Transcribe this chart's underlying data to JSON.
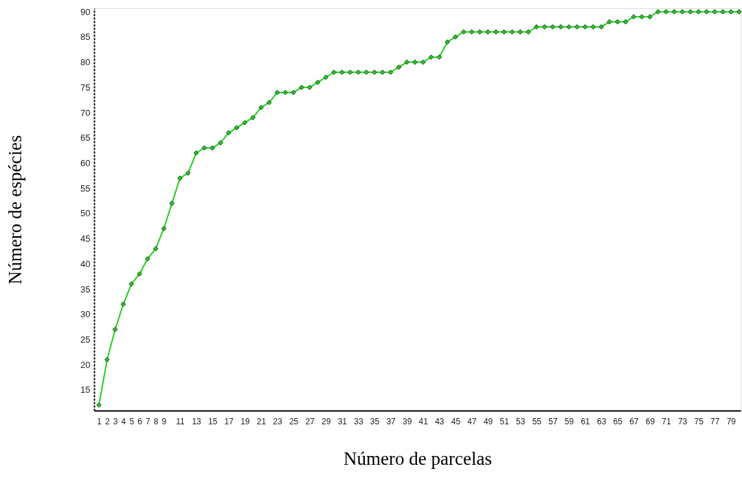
{
  "chart_data": {
    "type": "line",
    "xlabel": "Número de parcelas",
    "ylabel": "Número de espécies",
    "x": [
      1,
      2,
      3,
      4,
      5,
      6,
      7,
      8,
      9,
      10,
      11,
      12,
      13,
      14,
      15,
      16,
      17,
      18,
      19,
      20,
      21,
      22,
      23,
      24,
      25,
      26,
      27,
      28,
      29,
      30,
      31,
      32,
      33,
      34,
      35,
      36,
      37,
      38,
      39,
      40,
      41,
      42,
      43,
      44,
      45,
      46,
      47,
      48,
      49,
      50,
      51,
      52,
      53,
      54,
      55,
      56,
      57,
      58,
      59,
      60,
      61,
      62,
      63,
      64,
      65,
      66,
      67,
      68,
      69,
      70,
      71,
      72,
      73,
      74,
      75,
      76,
      77,
      78,
      79,
      80
    ],
    "series": [
      {
        "color": "#22cc22",
        "values": [
          12,
          21,
          27,
          32,
          36,
          38,
          41,
          43,
          47,
          52,
          57,
          58,
          62,
          63,
          63,
          64,
          66,
          67,
          68,
          69,
          71,
          72,
          74,
          74,
          74,
          75,
          75,
          76,
          77,
          78,
          78,
          78,
          78,
          78,
          78,
          78,
          78,
          79,
          80,
          80,
          80,
          81,
          81,
          84,
          85,
          86,
          86,
          86,
          86,
          86,
          86,
          86,
          86,
          86,
          87,
          87,
          87,
          87,
          87,
          87,
          87,
          87,
          87,
          88,
          88,
          88,
          89,
          89,
          89,
          90,
          90,
          90,
          90,
          90,
          90,
          90,
          90,
          90,
          90,
          90
        ]
      }
    ],
    "xlim": [
      0.4,
      80.2
    ],
    "xticks": [
      1,
      2,
      3,
      4,
      5,
      6,
      7,
      8,
      9,
      11,
      13,
      15,
      17,
      19,
      21,
      23,
      25,
      27,
      29,
      31,
      33,
      35,
      37,
      39,
      41,
      43,
      45,
      47,
      49,
      51,
      53,
      55,
      57,
      59,
      61,
      63,
      65,
      67,
      69,
      71,
      73,
      75,
      77,
      79
    ],
    "ylim": [
      10.9,
      90.7
    ],
    "yticks": [
      15,
      20,
      25,
      30,
      35,
      40,
      45,
      50,
      55,
      60,
      65,
      70,
      75,
      80,
      85,
      90
    ],
    "grid": false,
    "marker": "diamond",
    "line_style": "solid"
  }
}
